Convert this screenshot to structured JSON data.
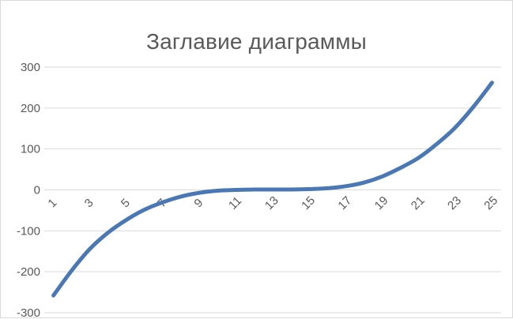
{
  "chart_data": {
    "type": "line",
    "title": "Заглавие диаграммы",
    "xlabel": "",
    "ylabel": "",
    "x": [
      1,
      2,
      3,
      4,
      5,
      6,
      7,
      8,
      9,
      10,
      11,
      12,
      13,
      14,
      15,
      16,
      17,
      18,
      19,
      20,
      21,
      22,
      23,
      24,
      25
    ],
    "x_tick_labels": [
      "1",
      "3",
      "5",
      "7",
      "9",
      "11",
      "13",
      "15",
      "17",
      "19",
      "21",
      "23",
      "25"
    ],
    "ylim": [
      -300,
      300
    ],
    "y_ticks": [
      300,
      200,
      100,
      0,
      -100,
      -200,
      -300
    ],
    "grid": true,
    "legend": "none",
    "series": [
      {
        "color": "#4a78b5",
        "values": [
          -258,
          -197,
          -144,
          -104,
          -73,
          -48,
          -30,
          -16,
          -7,
          -2,
          0,
          1,
          1,
          1,
          2,
          4,
          9,
          18,
          33,
          54,
          79,
          113,
          153,
          204,
          262
        ]
      }
    ]
  }
}
